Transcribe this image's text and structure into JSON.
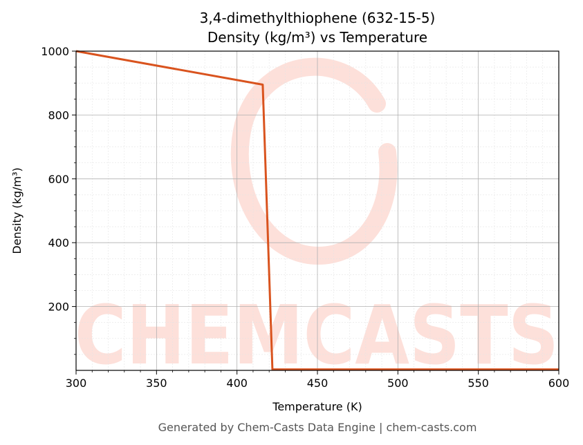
{
  "chart_data": {
    "type": "line",
    "title": "3,4-dimethylthiophene (632-15-5)",
    "subtitle": "Density (kg/m³) vs Temperature",
    "xlabel": "Temperature (K)",
    "ylabel": "Density (kg/m³)",
    "xlim": [
      300,
      600
    ],
    "ylim": [
      0,
      1000
    ],
    "x_ticks": [
      300,
      350,
      400,
      450,
      500,
      550,
      600
    ],
    "y_ticks": [
      200,
      400,
      600,
      800,
      1000
    ],
    "grid": true,
    "series": [
      {
        "x": [
          300,
          416,
          422,
          600
        ],
        "y": [
          1005,
          895,
          3,
          3
        ]
      }
    ],
    "footer": "Generated by Chem-Casts Data Engine | chem-casts.com",
    "watermark": "CHEMCASTS",
    "colors": {
      "line": "#d9531e",
      "watermark": "#fde0da",
      "major_grid": "#b0b0b0",
      "minor_grid": "#e4e4e4"
    }
  }
}
